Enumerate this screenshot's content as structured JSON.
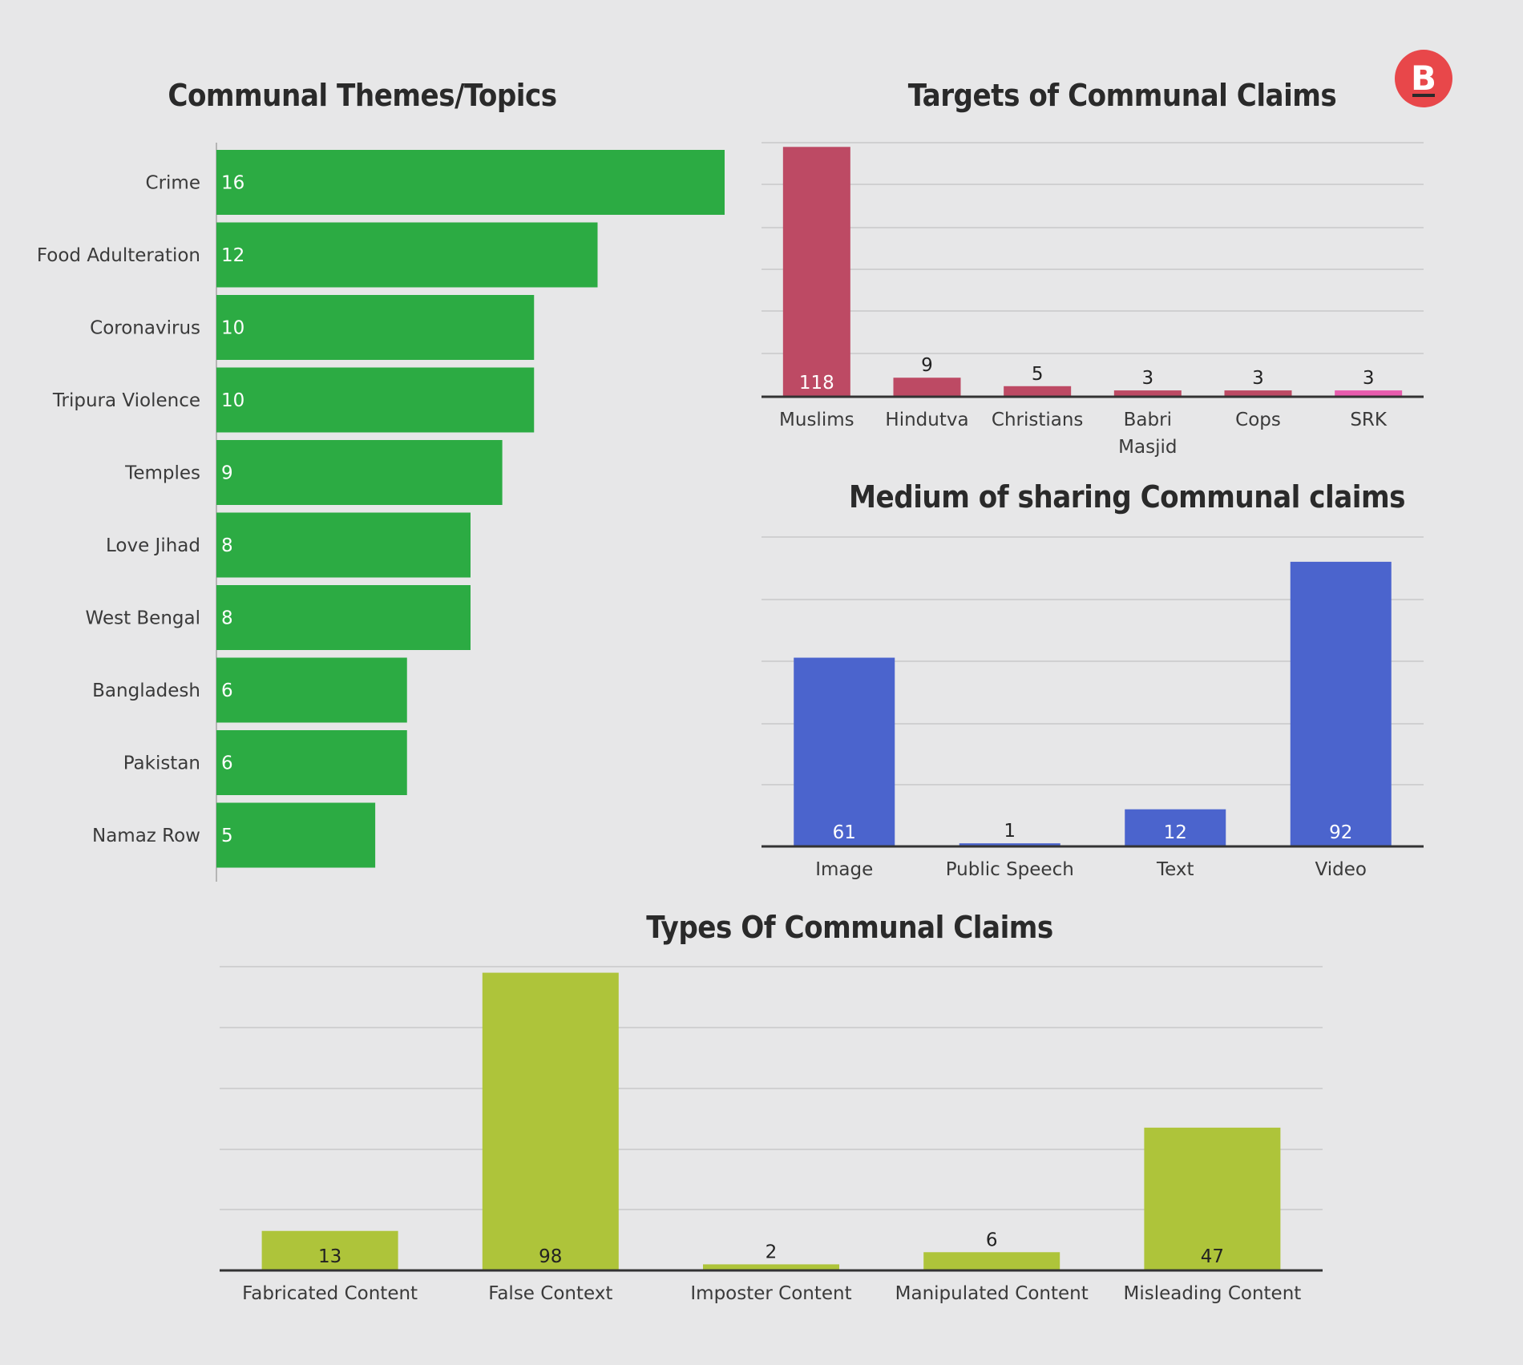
{
  "brand": {
    "logo_letter": "B",
    "logo_color": "#e8474a"
  },
  "chart_data": [
    {
      "id": "themes",
      "type": "bar",
      "orientation": "horizontal",
      "title": "Communal Themes/Topics",
      "color": "#2cab43",
      "categories": [
        "Crime",
        "Food Adulteration",
        "Coronavirus",
        "Tripura Violence",
        "Temples",
        "Love Jihad",
        "West Bengal",
        "Bangladesh",
        "Pakistan",
        "Namaz Row"
      ],
      "values": [
        16,
        12,
        10,
        10,
        9,
        8,
        8,
        6,
        6,
        5
      ],
      "xlim": [
        0,
        16
      ],
      "grid": false
    },
    {
      "id": "targets",
      "type": "bar",
      "title": "Targets of Communal Claims",
      "color": "#bd4a64",
      "highlight_color": "#e85cae",
      "highlight_index": 5,
      "categories": [
        "Muslims",
        "Hindutva",
        "Christians",
        "Babri Masjid",
        "Cops",
        "SRK"
      ],
      "values": [
        118,
        9,
        5,
        3,
        3,
        3
      ],
      "ylim": [
        0,
        120
      ],
      "grid": true
    },
    {
      "id": "medium",
      "type": "bar",
      "title": "Medium of sharing Communal claims",
      "color": "#4b64cd",
      "categories": [
        "Image",
        "Public Speech",
        "Text",
        "Video"
      ],
      "values": [
        61,
        1,
        12,
        92
      ],
      "ylim": [
        0,
        100
      ],
      "grid": true
    },
    {
      "id": "types",
      "type": "bar",
      "title": "Types Of Communal Claims",
      "color": "#aec43a",
      "categories": [
        "Fabricated Content",
        "False Context",
        "Imposter Content",
        "Manipulated Content",
        "Misleading Content"
      ],
      "values": [
        13,
        98,
        2,
        6,
        47
      ],
      "ylim": [
        0,
        100
      ],
      "grid": true
    }
  ]
}
